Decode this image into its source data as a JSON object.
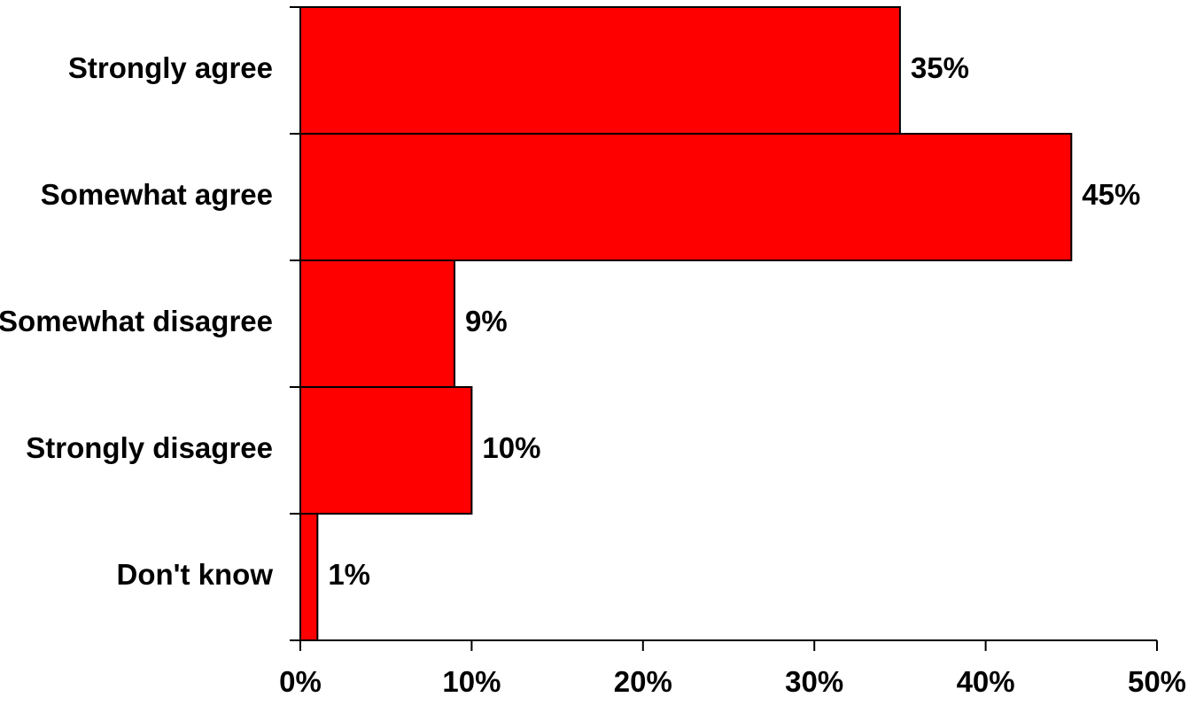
{
  "chart_data": {
    "type": "bar",
    "orientation": "horizontal",
    "categories": [
      "Strongly agree",
      "Somewhat agree",
      "Somewhat disagree",
      "Strongly disagree",
      "Don't know"
    ],
    "values": [
      35,
      45,
      9,
      10,
      1
    ],
    "value_labels": [
      "35%",
      "45%",
      "9%",
      "10%",
      "1%"
    ],
    "xticks": [
      0,
      10,
      20,
      30,
      40,
      50
    ],
    "xtick_labels": [
      "0%",
      "10%",
      "20%",
      "30%",
      "40%",
      "50%"
    ],
    "xlim": [
      0,
      50
    ],
    "title": "",
    "xlabel": "",
    "ylabel": "",
    "grid": false,
    "legend": "none",
    "bar_color": "#ff0000",
    "bar_edge_color": "#000000"
  }
}
